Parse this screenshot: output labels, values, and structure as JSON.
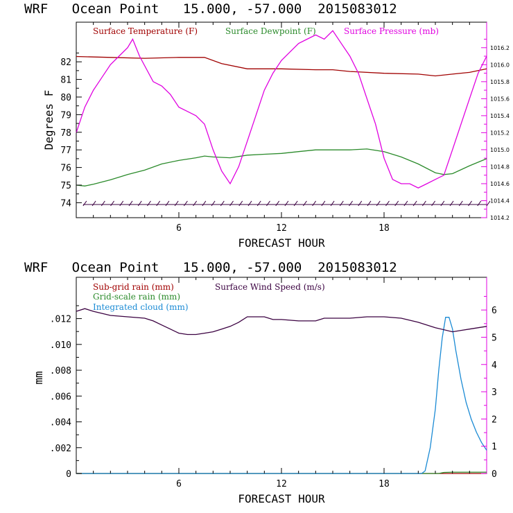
{
  "colors": {
    "temp": "#a00000",
    "dewpoint": "#2a8a2a",
    "pressure": "#e000e0",
    "subgrid": "#a00000",
    "gridscale": "#2a8a2a",
    "cloud": "#1a8ad4",
    "wind": "#3a0040",
    "barb": "#3a0040"
  },
  "chart_data": [
    {
      "type": "line",
      "title": "WRF   Ocean Point   15.000, -57.000  2015083012",
      "xlabel": "FORECAST HOUR",
      "ylabel": "Degrees F",
      "xlim": [
        0,
        24
      ],
      "ylim": [
        73.15,
        84.25
      ],
      "y2lim": [
        1014.2,
        1016.5
      ],
      "x_ticks": [
        6,
        12,
        18
      ],
      "y_ticks": [
        74,
        75,
        76,
        77,
        78,
        79,
        80,
        81,
        82
      ],
      "y2_ticks": [
        "1014.2",
        "1014.4",
        "1014.6",
        "1014.8",
        "1015.0",
        "1015.2",
        "1015.4",
        "1015.6",
        "1015.8",
        "1016.0",
        "1016.2"
      ],
      "legend": [
        "Surface Temperature (F)",
        "Surface Dewpoint (F)",
        "Surface Pressure (mb)"
      ],
      "series": [
        {
          "name": "Surface Temperature (F)",
          "axis": "left",
          "x": [
            0,
            2,
            4,
            6,
            7.5,
            8.5,
            10,
            12,
            14,
            15,
            16,
            18,
            20,
            21,
            22,
            23,
            24
          ],
          "values": [
            82.3,
            82.25,
            82.2,
            82.25,
            82.25,
            81.9,
            81.6,
            81.6,
            81.55,
            81.55,
            81.45,
            81.35,
            81.3,
            81.2,
            81.3,
            81.4,
            81.6
          ]
        },
        {
          "name": "Surface Dewpoint (F)",
          "axis": "left",
          "x": [
            0,
            0.5,
            1,
            2,
            3,
            4,
            5,
            6,
            7,
            7.5,
            8,
            9,
            10,
            11,
            12,
            13,
            14,
            15,
            16,
            17,
            18,
            19,
            20,
            21,
            21.5,
            22,
            23,
            24
          ],
          "values": [
            75.0,
            74.95,
            75.05,
            75.3,
            75.6,
            75.85,
            76.2,
            76.4,
            76.55,
            76.65,
            76.6,
            76.55,
            76.7,
            76.75,
            76.8,
            76.9,
            77.0,
            77.0,
            77.0,
            77.05,
            76.9,
            76.6,
            76.2,
            75.7,
            75.6,
            75.65,
            76.1,
            76.5
          ]
        },
        {
          "name": "Surface Pressure (mb)",
          "axis": "right",
          "x": [
            0,
            0.5,
            1,
            1.5,
            2,
            2.5,
            3,
            3.3,
            3.7,
            4.5,
            5,
            5.5,
            6,
            6.5,
            7,
            7.5,
            8,
            8.5,
            9,
            9.5,
            10,
            10.5,
            11,
            11.5,
            12,
            12.5,
            13,
            13.5,
            14,
            14.5,
            15,
            15.5,
            16,
            16.5,
            17,
            17.5,
            18,
            18.5,
            19,
            19.5,
            20,
            20.5,
            21,
            21.5,
            22,
            22.5,
            23,
            23.5,
            24
          ],
          "values": [
            1015.2,
            1015.5,
            1015.7,
            1015.85,
            1016.0,
            1016.1,
            1016.2,
            1016.3,
            1016.1,
            1015.8,
            1015.75,
            1015.65,
            1015.5,
            1015.45,
            1015.4,
            1015.3,
            1015.0,
            1014.75,
            1014.6,
            1014.8,
            1015.1,
            1015.4,
            1015.7,
            1015.9,
            1016.05,
            1016.15,
            1016.25,
            1016.3,
            1016.35,
            1016.3,
            1016.4,
            1016.25,
            1016.1,
            1015.9,
            1015.6,
            1015.3,
            1014.9,
            1014.65,
            1014.6,
            1014.6,
            1014.55,
            1014.6,
            1014.65,
            1014.7,
            1015.0,
            1015.3,
            1015.6,
            1015.9,
            1016.1
          ]
        },
        {
          "name": "Wind Barbs",
          "axis": "left",
          "level": 73.9,
          "count": 45,
          "x_start": 0.4,
          "x_end": 24
        }
      ]
    },
    {
      "type": "line",
      "title": "WRF   Ocean Point   15.000, -57.000  2015083012",
      "xlabel": "FORECAST HOUR",
      "ylabel": "mm",
      "xlim": [
        0,
        24
      ],
      "ylim": [
        0,
        0.0152
      ],
      "y2lim": [
        0,
        7.2
      ],
      "x_ticks": [
        6,
        12,
        18
      ],
      "y_ticks": [
        "0",
        ".002",
        ".004",
        ".006",
        ".008",
        ".010",
        ".012"
      ],
      "y2_ticks": [
        "0",
        "1",
        "2",
        "3",
        "4",
        "5",
        "6"
      ],
      "legend": [
        "Sub-grid rain (mm)",
        "Grid-scale rain (mm)",
        "Integrated cloud (mm)",
        "Surface Wind Speed (m/s)"
      ],
      "series": [
        {
          "name": "Sub-grid rain (mm)",
          "axis": "left",
          "x": [
            0,
            24
          ],
          "values": [
            0,
            0
          ]
        },
        {
          "name": "Grid-scale rain (mm)",
          "axis": "left",
          "x": [
            0,
            21.2,
            21.5,
            22,
            24
          ],
          "values": [
            0,
            0,
            8e-05,
            0.0001,
            0.0001
          ]
        },
        {
          "name": "Integrated cloud (mm)",
          "axis": "left",
          "x": [
            0,
            20.2,
            20.4,
            20.7,
            21.0,
            21.2,
            21.4,
            21.6,
            21.8,
            22.0,
            22.2,
            22.5,
            22.8,
            23.1,
            23.4,
            23.7,
            24
          ],
          "values": [
            0,
            0,
            0.0002,
            0.002,
            0.005,
            0.008,
            0.0105,
            0.0121,
            0.0121,
            0.0112,
            0.0095,
            0.0073,
            0.0055,
            0.0042,
            0.0032,
            0.0024,
            0.0018
          ]
        },
        {
          "name": "Surface Wind Speed (m/s)",
          "axis": "right",
          "x": [
            0,
            0.5,
            1,
            2,
            3,
            4,
            4.5,
            5,
            5.5,
            6,
            6.5,
            7,
            7.5,
            8,
            8.5,
            9,
            9.5,
            10,
            11,
            11.5,
            12,
            13,
            14,
            14.5,
            15,
            16,
            17,
            18,
            19,
            20,
            21,
            22,
            22.5,
            23,
            24
          ],
          "values": [
            5.95,
            6.05,
            5.95,
            5.8,
            5.75,
            5.7,
            5.6,
            5.45,
            5.3,
            5.15,
            5.1,
            5.1,
            5.15,
            5.2,
            5.3,
            5.4,
            5.55,
            5.75,
            5.75,
            5.65,
            5.65,
            5.6,
            5.6,
            5.7,
            5.7,
            5.7,
            5.75,
            5.75,
            5.7,
            5.55,
            5.35,
            5.2,
            5.25,
            5.3,
            5.4
          ]
        }
      ]
    }
  ]
}
